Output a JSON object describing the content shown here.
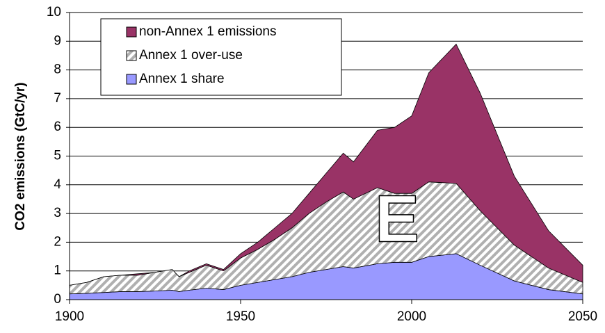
{
  "chart_data": {
    "type": "stacked_area",
    "y_label": "CO2 emissions (GtC/yr)",
    "annotation": "E",
    "x": [
      1900,
      1905,
      1910,
      1915,
      1920,
      1925,
      1930,
      1932,
      1935,
      1940,
      1945,
      1950,
      1955,
      1960,
      1965,
      1970,
      1975,
      1980,
      1983,
      1990,
      1995,
      2000,
      2005,
      2013,
      2020,
      2030,
      2040,
      2050
    ],
    "series": [
      {
        "name": "Annex 1 share",
        "color": "#9999ff",
        "values": [
          0.2,
          0.22,
          0.25,
          0.28,
          0.28,
          0.3,
          0.33,
          0.28,
          0.33,
          0.4,
          0.35,
          0.5,
          0.6,
          0.7,
          0.8,
          0.95,
          1.05,
          1.15,
          1.1,
          1.25,
          1.3,
          1.3,
          1.5,
          1.6,
          1.2,
          0.65,
          0.35,
          0.2
        ]
      },
      {
        "name": "Annex 1 over-use",
        "color": "#b0b0b0",
        "hatch": true,
        "values": [
          0.3,
          0.38,
          0.55,
          0.57,
          0.57,
          0.65,
          0.72,
          0.52,
          0.62,
          0.8,
          0.65,
          0.95,
          1.15,
          1.4,
          1.7,
          2.05,
          2.35,
          2.6,
          2.4,
          2.65,
          2.4,
          2.4,
          2.6,
          2.45,
          1.9,
          1.25,
          0.75,
          0.4
        ]
      },
      {
        "name": "non-Annex 1 emissions",
        "color": "#993366",
        "values": [
          0,
          0,
          0,
          0,
          0.05,
          0,
          0,
          0,
          0.05,
          0.05,
          0.05,
          0.15,
          0.25,
          0.4,
          0.5,
          0.7,
          1.0,
          1.35,
          1.3,
          2.0,
          2.3,
          2.7,
          3.8,
          4.85,
          4.1,
          2.4,
          1.3,
          0.6
        ]
      }
    ],
    "xlim": [
      1900,
      2050
    ],
    "xticks": [
      1900,
      1950,
      2000,
      2050
    ],
    "ylim": [
      0,
      10
    ],
    "yticks": [
      0,
      1,
      2,
      3,
      4,
      5,
      6,
      7,
      8,
      9,
      10
    ],
    "grid": true
  }
}
